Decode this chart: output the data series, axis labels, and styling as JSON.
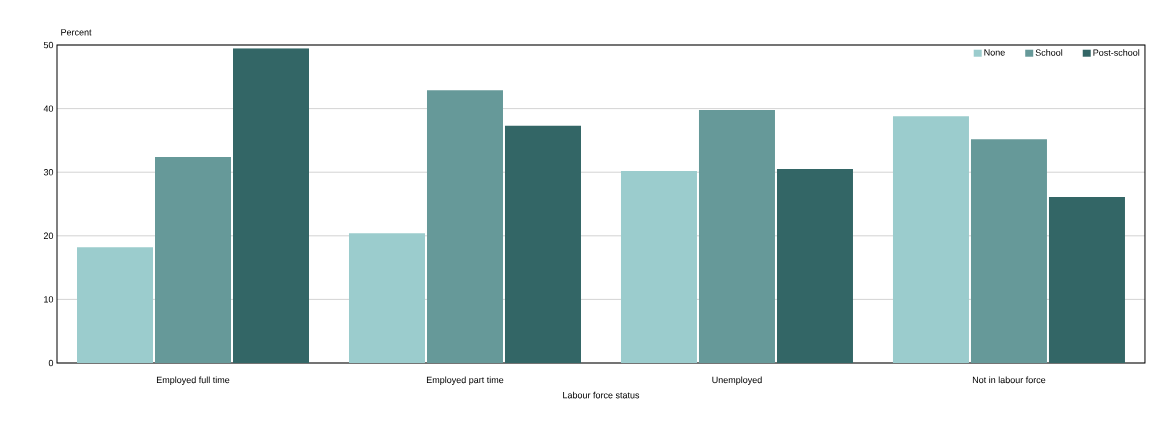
{
  "chart_data": {
    "type": "bar",
    "ylabel": "Percent",
    "xlabel": "Labour force status",
    "categories": [
      "Employed full time",
      "Employed part time",
      "Unemployed",
      "Not in labour force"
    ],
    "series": [
      {
        "name": "None",
        "color": "#9bcccd",
        "values": [
          18.2,
          20.4,
          30.2,
          38.8
        ]
      },
      {
        "name": "School",
        "color": "#669999",
        "values": [
          32.4,
          42.9,
          39.8,
          35.2
        ]
      },
      {
        "name": "Post-school",
        "color": "#336666",
        "values": [
          49.5,
          37.3,
          30.5,
          26.1
        ]
      }
    ],
    "ylim": [
      0,
      50
    ],
    "yticks": [
      0,
      10,
      20,
      30,
      40,
      50
    ],
    "grid": "y",
    "legend": "top right"
  }
}
